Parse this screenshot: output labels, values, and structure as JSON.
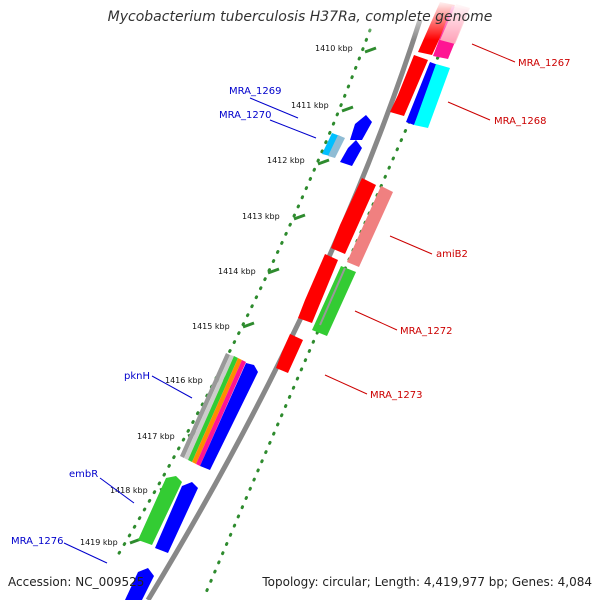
{
  "title": "Mycobacterium tuberculosis H37Ra, complete genome",
  "footer": {
    "accession": "Accession: NC_009525",
    "stats": "Topology: circular; Length: 4,419,977 bp; Genes: 4,084"
  },
  "colors": {
    "backbone": "#888888",
    "tick_dots": "#2e8b2e",
    "forward_label": "#0000cc",
    "reverse_label": "#cc0000",
    "red": "#ff0000",
    "blue": "#0000ff",
    "green": "#33cc33",
    "cyan": "#00ffff",
    "magenta": "#ff1493",
    "pink": "#f08080"
  },
  "scale_labels": [
    "1410 kbp",
    "1411 kbp",
    "1412 kbp",
    "1413 kbp",
    "1414 kbp",
    "1415 kbp",
    "1416 kbp",
    "1417 kbp",
    "1418 kbp",
    "1419 kbp"
  ],
  "gene_labels": {
    "forward": [
      "MRA_1269",
      "MRA_1270",
      "pknH",
      "embR",
      "MRA_1276"
    ],
    "reverse": [
      "MRA_1267",
      "MRA_1268",
      "amiB2",
      "MRA_1272",
      "MRA_1273"
    ]
  }
}
